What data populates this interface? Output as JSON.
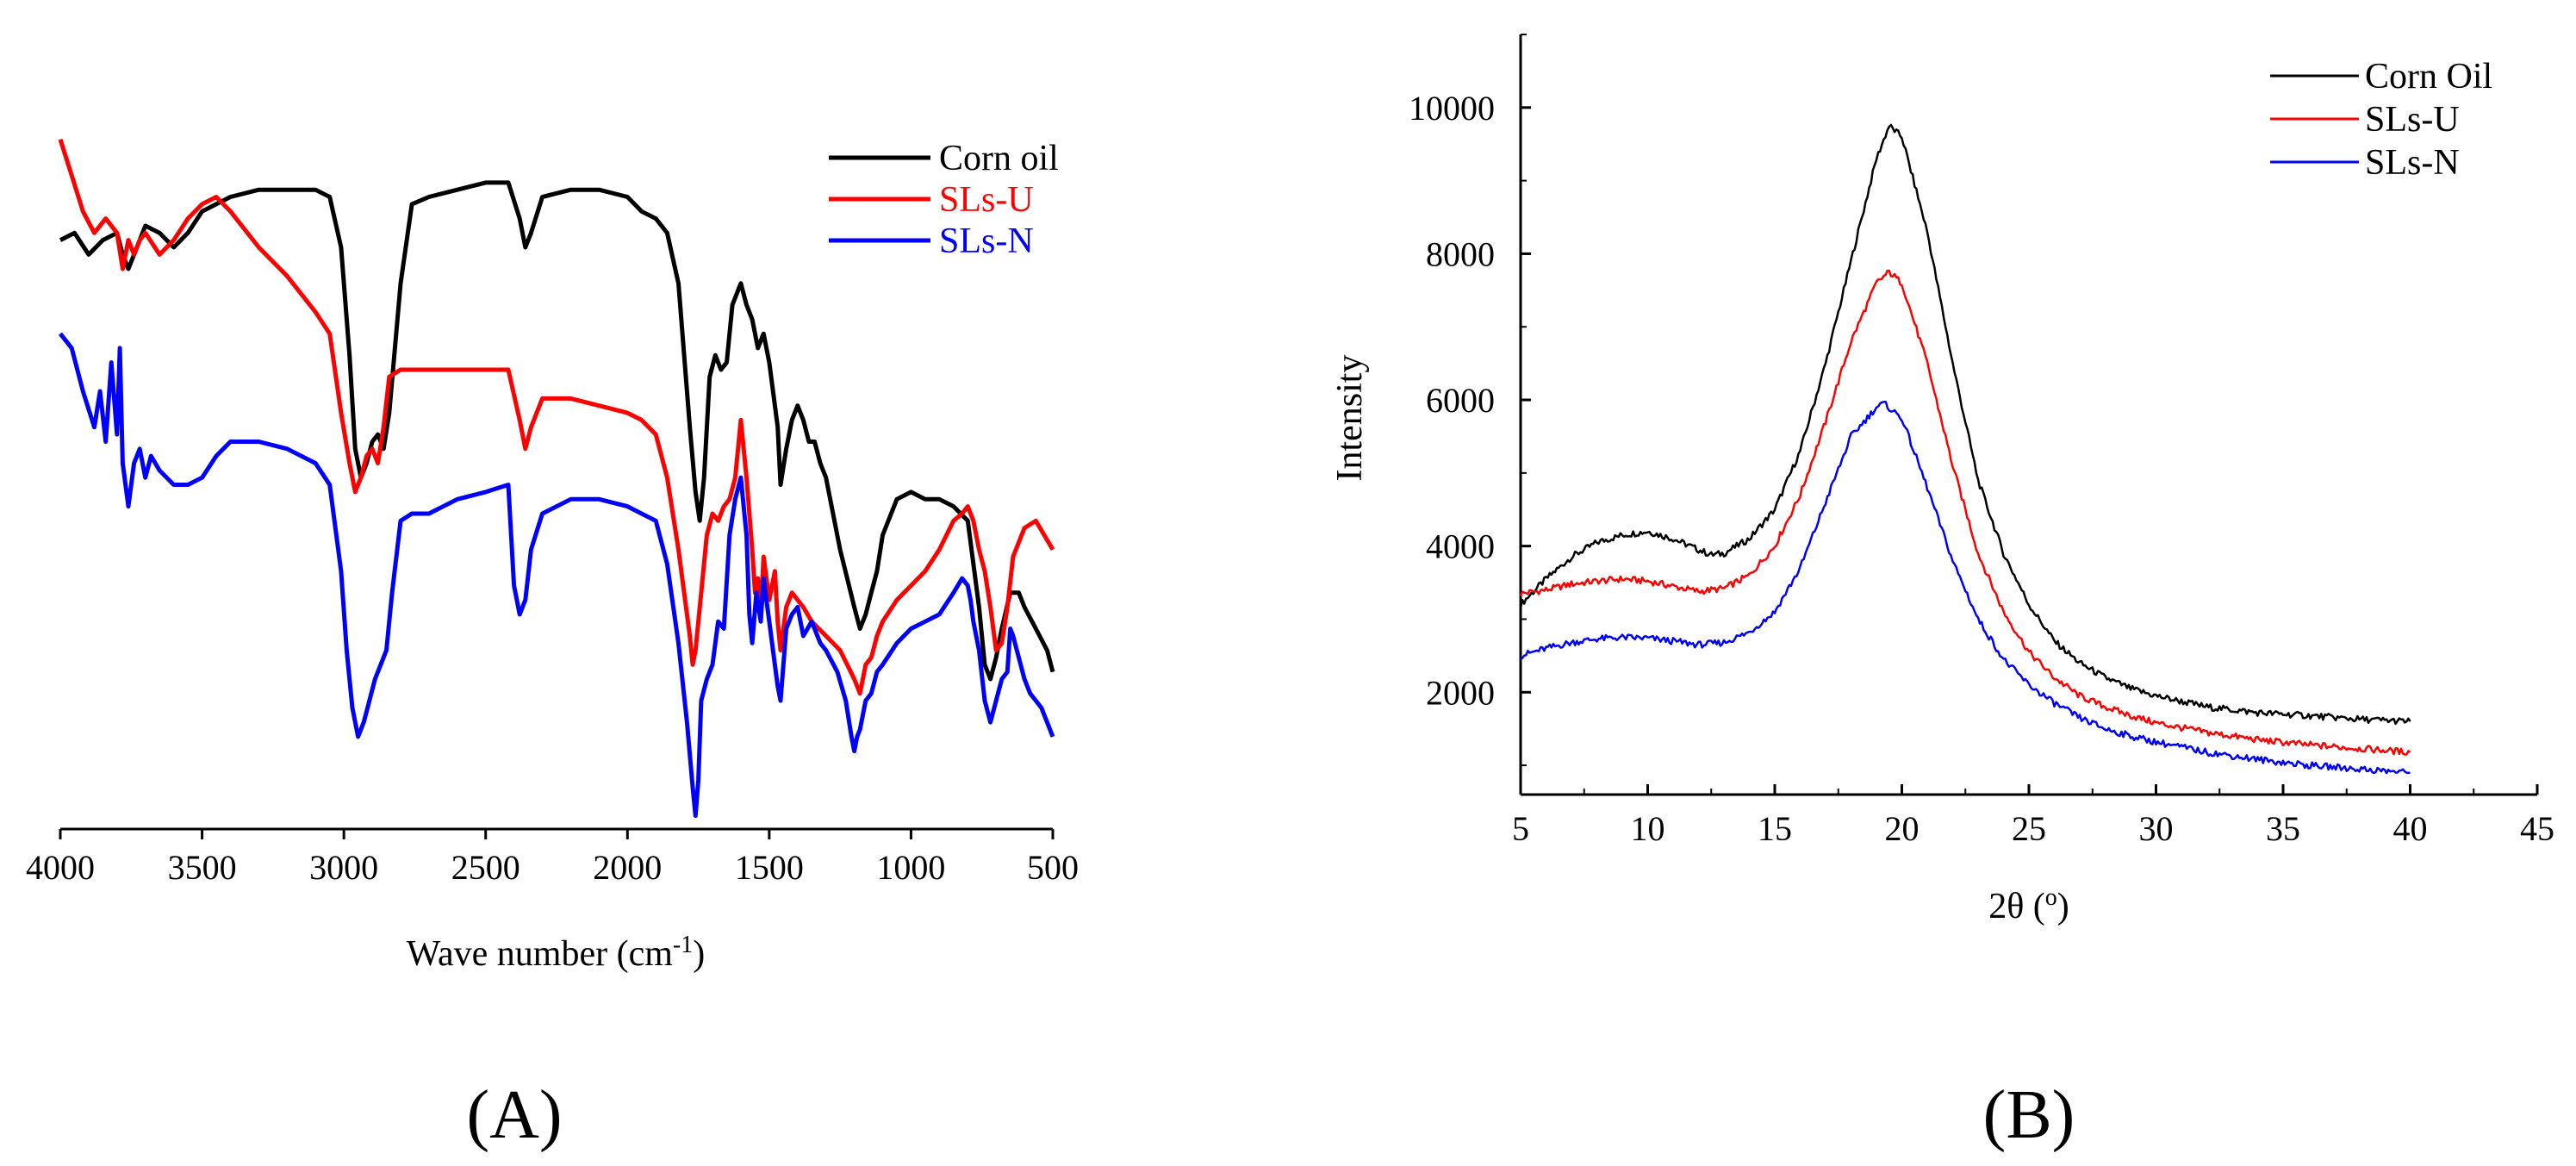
{
  "chart_data": [
    {
      "panel_label": "(A)",
      "type": "line",
      "xlabel_main": "Wave number (cm",
      "xlabel_sup": "-1",
      "xlabel_close": ")",
      "ylabel": "",
      "xlim": [
        4000,
        500
      ],
      "x_reversed": true,
      "ylim": [
        0,
        100
      ],
      "xticks": [
        4000,
        3500,
        3000,
        2500,
        2000,
        1500,
        1000,
        500
      ],
      "legend_position": "top-right",
      "series": [
        {
          "name": "Corn oil",
          "color": "#000000",
          "x": [
            4000,
            3950,
            3900,
            3850,
            3800,
            3780,
            3760,
            3740,
            3720,
            3700,
            3650,
            3600,
            3550,
            3500,
            3450,
            3400,
            3300,
            3200,
            3100,
            3050,
            3010,
            2980,
            2960,
            2940,
            2920,
            2900,
            2880,
            2860,
            2840,
            2800,
            2760,
            2700,
            2600,
            2500,
            2420,
            2380,
            2360,
            2340,
            2300,
            2200,
            2100,
            2000,
            1950,
            1900,
            1860,
            1820,
            1780,
            1760,
            1745,
            1730,
            1710,
            1690,
            1670,
            1650,
            1630,
            1600,
            1580,
            1560,
            1540,
            1520,
            1500,
            1470,
            1460,
            1440,
            1420,
            1400,
            1380,
            1360,
            1340,
            1320,
            1300,
            1250,
            1200,
            1180,
            1160,
            1140,
            1120,
            1100,
            1050,
            1000,
            950,
            900,
            850,
            800,
            760,
            740,
            720,
            700,
            680,
            650,
            620,
            600,
            560,
            520,
            500
          ],
          "y": [
            81,
            82,
            79,
            81,
            82,
            79,
            77,
            79,
            81,
            83,
            82,
            80,
            82,
            85,
            86,
            87,
            88,
            88,
            88,
            87,
            80,
            65,
            52,
            48,
            50,
            53,
            54,
            52,
            57,
            75,
            86,
            87,
            88,
            89,
            89,
            84,
            80,
            82,
            87,
            88,
            88,
            87,
            85,
            84,
            82,
            75,
            55,
            46,
            42,
            48,
            62,
            65,
            63,
            64,
            72,
            75,
            72,
            70,
            66,
            68,
            64,
            55,
            47,
            52,
            56,
            58,
            56,
            53,
            53,
            50,
            48,
            38,
            30,
            27,
            29,
            32,
            35,
            40,
            45,
            46,
            45,
            45,
            44,
            42,
            30,
            22,
            20,
            23,
            27,
            32,
            32,
            30,
            27,
            24,
            21
          ]
        },
        {
          "name": "SLs-U",
          "color": "#ff0000",
          "x": [
            4000,
            3960,
            3920,
            3880,
            3840,
            3800,
            3780,
            3760,
            3740,
            3720,
            3700,
            3650,
            3600,
            3550,
            3500,
            3450,
            3400,
            3300,
            3200,
            3100,
            3050,
            3010,
            2980,
            2960,
            2940,
            2920,
            2900,
            2880,
            2860,
            2840,
            2800,
            2760,
            2700,
            2600,
            2500,
            2420,
            2380,
            2360,
            2340,
            2300,
            2200,
            2100,
            2000,
            1950,
            1900,
            1860,
            1820,
            1780,
            1770,
            1760,
            1740,
            1720,
            1700,
            1680,
            1660,
            1640,
            1620,
            1600,
            1580,
            1560,
            1550,
            1540,
            1530,
            1520,
            1500,
            1480,
            1470,
            1460,
            1440,
            1420,
            1400,
            1380,
            1350,
            1300,
            1250,
            1200,
            1180,
            1170,
            1160,
            1140,
            1120,
            1100,
            1050,
            1000,
            950,
            900,
            850,
            820,
            800,
            780,
            760,
            740,
            720,
            700,
            680,
            660,
            640,
            600,
            560,
            530,
            500
          ],
          "y": [
            95,
            90,
            85,
            82,
            84,
            82,
            77,
            81,
            79,
            81,
            82,
            79,
            81,
            84,
            86,
            87,
            85,
            80,
            76,
            71,
            68,
            57,
            50,
            46,
            48,
            51,
            52,
            50,
            55,
            62,
            63,
            63,
            63,
            63,
            63,
            63,
            56,
            52,
            55,
            59,
            59,
            58,
            57,
            56,
            54,
            48,
            38,
            26,
            22,
            24,
            32,
            40,
            43,
            42,
            44,
            45,
            48,
            56,
            48,
            38,
            32,
            34,
            29,
            37,
            31,
            35,
            28,
            24,
            30,
            32,
            31,
            30,
            28,
            26,
            24,
            20,
            18,
            20,
            22,
            23,
            26,
            28,
            31,
            33,
            35,
            38,
            42,
            43,
            44,
            42,
            38,
            35,
            30,
            24,
            25,
            30,
            37,
            41,
            42,
            40,
            38
          ]
        },
        {
          "name": "SLs-N",
          "color": "#0000ff",
          "x": [
            4000,
            3960,
            3920,
            3880,
            3860,
            3840,
            3820,
            3800,
            3790,
            3780,
            3760,
            3740,
            3720,
            3700,
            3680,
            3650,
            3600,
            3550,
            3500,
            3450,
            3400,
            3350,
            3300,
            3200,
            3100,
            3050,
            3010,
            2990,
            2970,
            2950,
            2930,
            2910,
            2890,
            2870,
            2850,
            2830,
            2800,
            2760,
            2700,
            2600,
            2500,
            2420,
            2400,
            2380,
            2360,
            2340,
            2300,
            2200,
            2100,
            2000,
            1950,
            1900,
            1860,
            1820,
            1790,
            1770,
            1760,
            1750,
            1740,
            1720,
            1700,
            1680,
            1660,
            1640,
            1620,
            1600,
            1580,
            1570,
            1560,
            1545,
            1530,
            1520,
            1500,
            1480,
            1470,
            1460,
            1440,
            1420,
            1400,
            1380,
            1350,
            1320,
            1300,
            1260,
            1230,
            1210,
            1200,
            1190,
            1180,
            1160,
            1140,
            1120,
            1100,
            1050,
            1000,
            950,
            900,
            850,
            820,
            800,
            790,
            780,
            760,
            740,
            720,
            700,
            680,
            660,
            650,
            640,
            620,
            600,
            580,
            560,
            540,
            520,
            500
          ],
          "y": [
            68,
            66,
            60,
            55,
            60,
            53,
            64,
            54,
            66,
            50,
            44,
            50,
            52,
            48,
            51,
            49,
            47,
            47,
            48,
            51,
            53,
            53,
            53,
            52,
            50,
            47,
            35,
            24,
            16,
            12,
            14,
            17,
            20,
            22,
            24,
            32,
            42,
            43,
            43,
            45,
            46,
            47,
            33,
            29,
            31,
            38,
            43,
            45,
            45,
            44,
            43,
            42,
            36,
            25,
            14,
            5,
            1,
            6,
            17,
            20,
            22,
            28,
            27,
            40,
            45,
            48,
            40,
            29,
            25,
            32,
            28,
            34,
            28,
            22,
            19,
            17,
            27,
            29,
            30,
            26,
            28,
            25,
            24,
            21,
            17,
            12,
            10,
            12,
            13,
            17,
            18,
            21,
            22,
            25,
            27,
            28,
            29,
            32,
            34,
            33,
            31,
            28,
            24,
            17,
            14,
            17,
            20,
            21,
            27,
            26,
            23,
            20,
            18,
            17,
            16,
            14,
            12
          ]
        }
      ]
    },
    {
      "panel_label": "(B)",
      "type": "line",
      "xlabel_main": "2θ (",
      "xlabel_sup": "o",
      "xlabel_close": ")",
      "ylabel": "Intensity",
      "xlim": [
        5,
        45
      ],
      "ylim": [
        600,
        11000
      ],
      "xticks": [
        5,
        10,
        15,
        20,
        25,
        30,
        35,
        40,
        45
      ],
      "yticks": [
        2000,
        4000,
        6000,
        8000,
        10000
      ],
      "legend_position": "top-right",
      "series": [
        {
          "name": "Corn Oil",
          "color": "#000000",
          "x": [
            5,
            6,
            7,
            8,
            9,
            10,
            11,
            12,
            12.5,
            13,
            14,
            15,
            16,
            17,
            18,
            19,
            19.5,
            20,
            21,
            22,
            23,
            24,
            25,
            26,
            27,
            28,
            29,
            30,
            32,
            34,
            36,
            38,
            40
          ],
          "y": [
            3200,
            3550,
            3850,
            4050,
            4150,
            4200,
            4100,
            3950,
            3880,
            3900,
            4100,
            4500,
            5300,
            6500,
            7900,
            9300,
            9750,
            9600,
            8300,
            6500,
            4900,
            3900,
            3200,
            2700,
            2400,
            2200,
            2050,
            1950,
            1800,
            1720,
            1680,
            1630,
            1600
          ]
        },
        {
          "name": "SLs-U",
          "color": "#ff0000",
          "x": [
            5,
            6,
            7,
            8,
            9,
            10,
            11,
            12,
            13,
            14,
            15,
            16,
            17,
            18,
            19,
            19.5,
            20,
            21,
            22,
            23,
            24,
            25,
            26,
            27,
            28,
            29,
            30,
            32,
            34,
            36,
            38,
            40
          ],
          "y": [
            3350,
            3400,
            3480,
            3520,
            3550,
            3520,
            3450,
            3380,
            3420,
            3600,
            4000,
            4700,
            5700,
            6800,
            7600,
            7750,
            7600,
            6500,
            5100,
            3900,
            3100,
            2550,
            2200,
            1950,
            1800,
            1680,
            1580,
            1450,
            1350,
            1280,
            1230,
            1180
          ]
        },
        {
          "name": "SLs-N",
          "color": "#0000ff",
          "x": [
            5,
            6,
            7,
            8,
            9,
            10,
            11,
            12,
            13,
            14,
            15,
            16,
            17,
            18,
            19,
            19.3,
            20,
            21,
            22,
            23,
            24,
            25,
            26,
            27,
            28,
            29,
            30,
            32,
            34,
            36,
            38,
            40
          ],
          "y": [
            2500,
            2600,
            2680,
            2730,
            2750,
            2740,
            2700,
            2650,
            2680,
            2820,
            3100,
            3700,
            4600,
            5500,
            5900,
            5950,
            5750,
            4800,
            3800,
            3000,
            2450,
            2100,
            1850,
            1650,
            1500,
            1400,
            1320,
            1180,
            1080,
            1000,
            950,
            900
          ]
        }
      ]
    }
  ]
}
